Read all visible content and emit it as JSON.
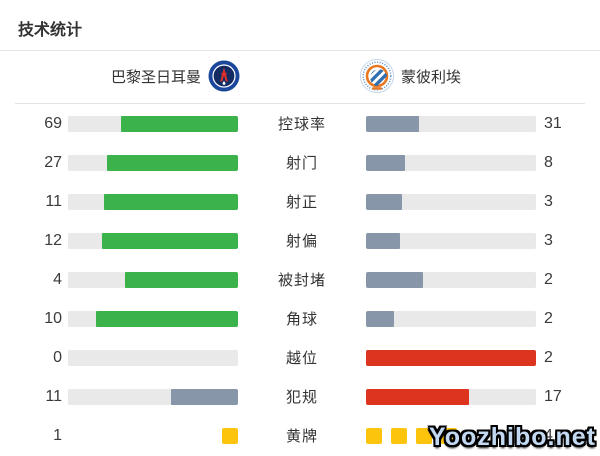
{
  "page": {
    "title": "技术统计"
  },
  "teams": {
    "home": {
      "name": "巴黎圣日耳曼"
    },
    "away": {
      "name": "蒙彼利埃"
    }
  },
  "watermark": {
    "text": "Yoozhibo.net"
  },
  "colors": {
    "home_bar": "#3cb24b",
    "away_bar": "#8896a9",
    "negative_bar": "#dd3420",
    "track": "#e9e9e9",
    "card": "#fdc40d"
  },
  "chart_data": {
    "type": "bar",
    "title": "技术统计",
    "layout": "paired horizontal bars anchored toward center; fill length = value / (home+away) share of track",
    "categories": [
      "控球率",
      "射门",
      "射正",
      "射偏",
      "被封堵",
      "角球",
      "越位",
      "犯规",
      "黄牌"
    ],
    "series": [
      {
        "name": "巴黎圣日耳曼",
        "values": [
          69,
          27,
          11,
          12,
          4,
          10,
          0,
          11,
          1
        ]
      },
      {
        "name": "蒙彼利埃",
        "values": [
          31,
          8,
          3,
          3,
          2,
          2,
          2,
          17,
          4
        ]
      }
    ],
    "rows": [
      {
        "label": "控球率",
        "home": 69,
        "away": 31,
        "home_color": "home_bar",
        "away_color": "away_bar",
        "type": "bar"
      },
      {
        "label": "射门",
        "home": 27,
        "away": 8,
        "home_color": "home_bar",
        "away_color": "away_bar",
        "type": "bar"
      },
      {
        "label": "射正",
        "home": 11,
        "away": 3,
        "home_color": "home_bar",
        "away_color": "away_bar",
        "type": "bar"
      },
      {
        "label": "射偏",
        "home": 12,
        "away": 3,
        "home_color": "home_bar",
        "away_color": "away_bar",
        "type": "bar"
      },
      {
        "label": "被封堵",
        "home": 4,
        "away": 2,
        "home_color": "home_bar",
        "away_color": "away_bar",
        "type": "bar"
      },
      {
        "label": "角球",
        "home": 10,
        "away": 2,
        "home_color": "home_bar",
        "away_color": "away_bar",
        "type": "bar"
      },
      {
        "label": "越位",
        "home": 0,
        "away": 2,
        "home_color": "home_bar",
        "away_color": "negative_bar",
        "type": "bar"
      },
      {
        "label": "犯规",
        "home": 11,
        "away": 17,
        "home_color": "away_bar",
        "away_color": "negative_bar",
        "type": "bar"
      },
      {
        "label": "黄牌",
        "home": 1,
        "away": 4,
        "home_color": "card",
        "away_color": "card",
        "type": "cards"
      }
    ]
  }
}
